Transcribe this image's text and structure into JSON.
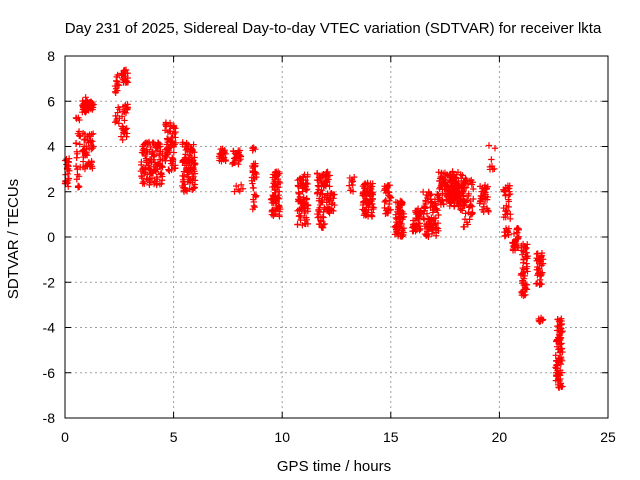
{
  "chart_data": {
    "type": "scatter",
    "title": "Day 231 of 2025, Sidereal Day-to-day VTEC variation (SDTVAR) for receiver lkta",
    "xlabel": "GPS time / hours",
    "ylabel": "SDTVAR / TECUs",
    "xlim": [
      0,
      25
    ],
    "ylim": [
      -8,
      8
    ],
    "xticks": [
      0,
      5,
      10,
      15,
      20,
      25
    ],
    "yticks": [
      -8,
      -6,
      -4,
      -2,
      0,
      2,
      4,
      6,
      8
    ],
    "grid": true,
    "marker": "+",
    "color": "#ff0000",
    "segments": [
      {
        "x0": 0.0,
        "x1": 0.2,
        "ymin": 2.2,
        "ymax": 3.5,
        "n": 24
      },
      {
        "x0": 0.5,
        "x1": 0.7,
        "ymin": 2.0,
        "ymax": 5.3,
        "n": 26
      },
      {
        "x0": 0.8,
        "x1": 1.0,
        "ymin": 5.5,
        "ymax": 6.2,
        "n": 26
      },
      {
        "x0": 0.8,
        "x1": 1.3,
        "ymin": 3.0,
        "ymax": 4.7,
        "n": 50
      },
      {
        "x0": 1.0,
        "x1": 1.3,
        "ymin": 5.6,
        "ymax": 6.0,
        "n": 24
      },
      {
        "x0": 2.3,
        "x1": 2.5,
        "ymin": 5.0,
        "ymax": 7.2,
        "n": 20
      },
      {
        "x0": 2.6,
        "x1": 2.9,
        "ymin": 6.8,
        "ymax": 7.4,
        "n": 22
      },
      {
        "x0": 2.6,
        "x1": 2.9,
        "ymin": 4.2,
        "ymax": 5.9,
        "n": 26
      },
      {
        "x0": 3.5,
        "x1": 4.5,
        "ymin": 2.3,
        "ymax": 4.2,
        "n": 120
      },
      {
        "x0": 4.6,
        "x1": 5.1,
        "ymin": 2.9,
        "ymax": 5.1,
        "n": 70
      },
      {
        "x0": 5.4,
        "x1": 6.0,
        "ymin": 2.0,
        "ymax": 4.2,
        "n": 100
      },
      {
        "x0": 7.1,
        "x1": 7.4,
        "ymin": 3.2,
        "ymax": 3.9,
        "n": 24
      },
      {
        "x0": 7.7,
        "x1": 8.1,
        "ymin": 3.2,
        "ymax": 3.9,
        "n": 24
      },
      {
        "x0": 7.8,
        "x1": 8.2,
        "ymin": 1.9,
        "ymax": 2.4,
        "n": 6
      },
      {
        "x0": 8.6,
        "x1": 8.8,
        "ymin": 1.2,
        "ymax": 4.1,
        "n": 36
      },
      {
        "x0": 9.5,
        "x1": 9.9,
        "ymin": 0.9,
        "ymax": 2.9,
        "n": 70
      },
      {
        "x0": 10.7,
        "x1": 11.2,
        "ymin": 0.5,
        "ymax": 2.8,
        "n": 80
      },
      {
        "x0": 11.6,
        "x1": 12.2,
        "ymin": 0.4,
        "ymax": 2.9,
        "n": 90
      },
      {
        "x0": 12.2,
        "x1": 12.4,
        "ymin": 1.1,
        "ymax": 2.1,
        "n": 14
      },
      {
        "x0": 13.1,
        "x1": 13.3,
        "ymin": 2.0,
        "ymax": 2.8,
        "n": 10
      },
      {
        "x0": 13.7,
        "x1": 14.2,
        "ymin": 0.9,
        "ymax": 2.4,
        "n": 80
      },
      {
        "x0": 14.7,
        "x1": 15.0,
        "ymin": 1.0,
        "ymax": 2.3,
        "n": 30
      },
      {
        "x0": 15.2,
        "x1": 15.6,
        "ymin": 0.0,
        "ymax": 1.6,
        "n": 70
      },
      {
        "x0": 16.0,
        "x1": 16.4,
        "ymin": 0.2,
        "ymax": 1.3,
        "n": 40
      },
      {
        "x0": 16.5,
        "x1": 17.2,
        "ymin": 0.0,
        "ymax": 2.0,
        "n": 80
      },
      {
        "x0": 17.2,
        "x1": 18.1,
        "ymin": 1.4,
        "ymax": 2.9,
        "n": 100
      },
      {
        "x0": 17.7,
        "x1": 18.4,
        "ymin": 1.2,
        "ymax": 2.8,
        "n": 80
      },
      {
        "x0": 18.3,
        "x1": 18.8,
        "ymin": 0.4,
        "ymax": 2.6,
        "n": 40
      },
      {
        "x0": 19.1,
        "x1": 19.5,
        "ymin": 1.1,
        "ymax": 2.3,
        "n": 36
      },
      {
        "x0": 19.5,
        "x1": 19.8,
        "ymin": 2.8,
        "ymax": 4.3,
        "n": 8
      },
      {
        "x0": 20.2,
        "x1": 20.5,
        "ymin": 0.0,
        "ymax": 2.3,
        "n": 40
      },
      {
        "x0": 20.6,
        "x1": 20.9,
        "ymin": -0.6,
        "ymax": 0.4,
        "n": 30
      },
      {
        "x0": 21.0,
        "x1": 21.3,
        "ymin": -2.6,
        "ymax": -0.3,
        "n": 50
      },
      {
        "x0": 21.7,
        "x1": 22.0,
        "ymin": -2.2,
        "ymax": -0.7,
        "n": 40
      },
      {
        "x0": 21.8,
        "x1": 22.0,
        "ymin": -3.8,
        "ymax": -3.4,
        "n": 10
      },
      {
        "x0": 22.6,
        "x1": 22.9,
        "ymin": -6.7,
        "ymax": -3.6,
        "n": 90
      }
    ]
  }
}
